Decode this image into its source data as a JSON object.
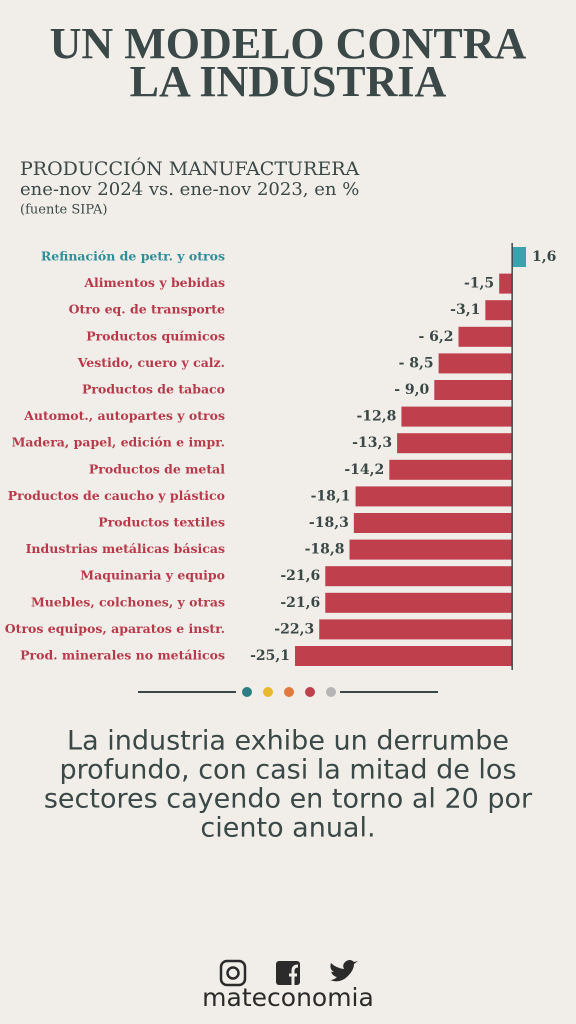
{
  "chart_data": {
    "type": "hbar",
    "title_lines": [
      "UN MODELO CONTRA",
      "LA INDUSTRIA"
    ],
    "subtitle_lines": [
      "PRODUCCIÓN MANUFACTURERA",
      "ene-nov 2024 vs. ene-nov 2023, en %",
      "(fuente SIPA)"
    ],
    "categories": [
      "Refinación de petr. y otros",
      "Alimentos y bebidas",
      "Otro eq. de transporte",
      "Productos químicos",
      "Vestido, cuero y calz.",
      "Productos de tabaco",
      "Automot., autopartes y otros",
      "Madera, papel, edición e impr.",
      "Productos de metal",
      "Productos de caucho y plástico",
      "Productos textiles",
      "Industrias metálicas básicas",
      "Maquinaria y equipo",
      "Muebles, colchones, y otras",
      "Otros equipos, aparatos e instr.",
      "Prod. minerales no metálicos"
    ],
    "values": [
      1.6,
      -1.5,
      -3.1,
      -6.2,
      -8.5,
      -9.0,
      -12.8,
      -13.3,
      -14.2,
      -18.1,
      -18.3,
      -18.8,
      -21.6,
      -21.6,
      -22.3,
      -25.1
    ],
    "value_labels": [
      "1,6",
      "-1,5",
      "-3,1",
      "- 6,2",
      "- 8,5",
      "- 9,0",
      "-12,8",
      "-13,3",
      "-14,2",
      "-18,1",
      "-18,3",
      "-18,8",
      "-21,6",
      "-21,6",
      "-22,3",
      "-25,1"
    ],
    "colors": [
      "#3aa3ae",
      "#bf3f4c",
      "#bf3f4c",
      "#bf3f4c",
      "#bf3f4c",
      "#bf3f4c",
      "#bf3f4c",
      "#bf3f4c",
      "#bf3f4c",
      "#bf3f4c",
      "#bf3f4c",
      "#bf3f4c",
      "#bf3f4c",
      "#bf3f4c",
      "#bf3f4c",
      "#bf3f4c"
    ],
    "label_colors": [
      "#2e8e99",
      "#b8394a",
      "#b8394a",
      "#b8394a",
      "#b8394a",
      "#b8394a",
      "#b8394a",
      "#b8394a",
      "#b8394a",
      "#b8394a",
      "#b8394a",
      "#b8394a",
      "#b8394a",
      "#b8394a",
      "#b8394a",
      "#b8394a"
    ],
    "xlim": [
      -25.1,
      1.6
    ]
  },
  "text": {
    "body_lines": [
      "La industria exhibe un derrumbe",
      "profundo, con casi la mitad de los",
      "sectores cayendo en torno al 20 por",
      "ciento anual."
    ],
    "brand": "mateconomia"
  }
}
